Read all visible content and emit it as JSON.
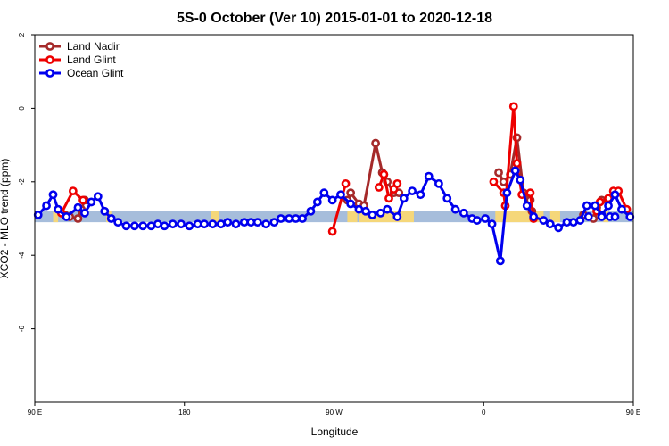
{
  "chart_data": {
    "type": "line",
    "title": "5S-0 October (Ver 10)   2015-01-01 to 2020-12-18",
    "xlabel": "Longitude",
    "ylabel": "XCO2 - MLO trend (ppm)",
    "xlim": [
      90,
      450
    ],
    "ylim": [
      -8,
      2
    ],
    "x_ticks": [
      {
        "value": 90,
        "label": "90 E"
      },
      {
        "value": 180,
        "label": "180"
      },
      {
        "value": 270,
        "label": "90 W"
      },
      {
        "value": 360,
        "label": "0"
      },
      {
        "value": 450,
        "label": "90 E"
      }
    ],
    "y_ticks": [
      {
        "value": 2,
        "label": "2"
      },
      {
        "value": 0,
        "label": "0"
      },
      {
        "value": -2,
        "label": "-2"
      },
      {
        "value": -4,
        "label": "-4"
      },
      {
        "value": -6,
        "label": "-6"
      }
    ],
    "grid": false,
    "legend_position": "top-left",
    "surface_band": {
      "y_range": [
        -3.1,
        -2.8
      ],
      "ocean_color": "#a6bddb",
      "land_color": "#f5d77a",
      "land_ranges": [
        [
          101,
          104
        ],
        [
          133,
          136
        ],
        [
          196,
          201
        ],
        [
          278,
          284
        ],
        [
          285,
          318
        ],
        [
          367,
          396
        ],
        [
          400,
          406
        ],
        [
          432,
          435
        ]
      ]
    },
    "series": [
      {
        "name": "Land Nadir",
        "color": "#a52a2a",
        "points": [
          [
            108,
            -2.9
          ],
          [
            111,
            -2.95
          ],
          [
            116,
            -3.0
          ],
          [
            118,
            -2.75
          ],
          [
            120,
            -2.5
          ],
          [
            278,
            -2.5
          ],
          [
            280,
            -2.3
          ],
          [
            285,
            -2.6
          ],
          [
            288,
            -2.65
          ],
          [
            295,
            -0.95
          ],
          [
            299,
            -1.75
          ],
          [
            302,
            -2.0
          ],
          [
            306,
            -2.3
          ],
          [
            309,
            -2.3
          ],
          [
            369,
            -1.75
          ],
          [
            372,
            -2.0
          ],
          [
            376,
            -1.8
          ],
          [
            380,
            -0.8
          ],
          [
            384,
            -2.3
          ],
          [
            388,
            -2.5
          ],
          [
            389,
            -2.8
          ],
          [
            420,
            -2.9
          ],
          [
            426,
            -3.0
          ],
          [
            428,
            -2.7
          ],
          [
            431,
            -2.5
          ]
        ]
      },
      {
        "name": "Land Glint",
        "color": "#ee0000",
        "points": [
          [
            106,
            -2.85
          ],
          [
            113,
            -2.25
          ],
          [
            119,
            -2.5
          ],
          [
            269,
            -3.35
          ],
          [
            277,
            -2.05
          ],
          [
            297,
            -2.15
          ],
          [
            300,
            -1.8
          ],
          [
            303,
            -2.45
          ],
          [
            306,
            -2.2
          ],
          [
            308,
            -2.05
          ],
          [
            366,
            -2.0
          ],
          [
            372,
            -2.3
          ],
          [
            373,
            -2.65
          ],
          [
            378,
            0.05
          ],
          [
            380,
            -1.5
          ],
          [
            383,
            -2.35
          ],
          [
            388,
            -2.3
          ],
          [
            390,
            -3.0
          ],
          [
            428,
            -2.8
          ],
          [
            430,
            -2.55
          ],
          [
            435,
            -2.45
          ],
          [
            438,
            -2.25
          ],
          [
            441,
            -2.25
          ],
          [
            446,
            -2.75
          ]
        ]
      },
      {
        "name": "Ocean Glint",
        "color": "#0000ee",
        "points": [
          [
            92,
            -2.9
          ],
          [
            97,
            -2.65
          ],
          [
            101,
            -2.35
          ],
          [
            104,
            -2.75
          ],
          [
            109,
            -2.95
          ],
          [
            116,
            -2.7
          ],
          [
            120,
            -2.85
          ],
          [
            124,
            -2.55
          ],
          [
            128,
            -2.4
          ],
          [
            132,
            -2.8
          ],
          [
            136,
            -3.0
          ],
          [
            140,
            -3.1
          ],
          [
            145,
            -3.2
          ],
          [
            150,
            -3.2
          ],
          [
            155,
            -3.2
          ],
          [
            160,
            -3.2
          ],
          [
            164,
            -3.15
          ],
          [
            168,
            -3.2
          ],
          [
            173,
            -3.15
          ],
          [
            178,
            -3.15
          ],
          [
            183,
            -3.2
          ],
          [
            188,
            -3.15
          ],
          [
            192,
            -3.15
          ],
          [
            197,
            -3.15
          ],
          [
            202,
            -3.15
          ],
          [
            206,
            -3.1
          ],
          [
            211,
            -3.15
          ],
          [
            216,
            -3.1
          ],
          [
            220,
            -3.1
          ],
          [
            224,
            -3.1
          ],
          [
            229,
            -3.15
          ],
          [
            234,
            -3.1
          ],
          [
            238,
            -3.0
          ],
          [
            243,
            -3.0
          ],
          [
            247,
            -3.0
          ],
          [
            251,
            -3.0
          ],
          [
            256,
            -2.8
          ],
          [
            260,
            -2.55
          ],
          [
            264,
            -2.3
          ],
          [
            269,
            -2.5
          ],
          [
            274,
            -2.35
          ],
          [
            280,
            -2.6
          ],
          [
            285,
            -2.75
          ],
          [
            289,
            -2.8
          ],
          [
            293,
            -2.9
          ],
          [
            298,
            -2.85
          ],
          [
            302,
            -2.75
          ],
          [
            308,
            -2.95
          ],
          [
            312,
            -2.45
          ],
          [
            317,
            -2.25
          ],
          [
            322,
            -2.35
          ],
          [
            327,
            -1.85
          ],
          [
            333,
            -2.05
          ],
          [
            338,
            -2.45
          ],
          [
            343,
            -2.75
          ],
          [
            348,
            -2.85
          ],
          [
            353,
            -3.0
          ],
          [
            356,
            -3.05
          ],
          [
            361,
            -3.0
          ],
          [
            365,
            -3.15
          ],
          [
            370,
            -4.15
          ],
          [
            374,
            -2.3
          ],
          [
            379,
            -1.7
          ],
          [
            382,
            -1.95
          ],
          [
            386,
            -2.65
          ],
          [
            390,
            -2.95
          ],
          [
            396,
            -3.05
          ],
          [
            400,
            -3.15
          ],
          [
            405,
            -3.25
          ],
          [
            410,
            -3.1
          ],
          [
            414,
            -3.1
          ],
          [
            418,
            -3.05
          ],
          [
            422,
            -2.65
          ],
          [
            427,
            -2.65
          ],
          [
            431,
            -2.9
          ],
          [
            435,
            -2.65
          ],
          [
            439,
            -2.35
          ],
          [
            443,
            -2.75
          ],
          [
            448,
            -2.95
          ],
          [
            436,
            -2.95
          ],
          [
            431,
            -2.95
          ],
          [
            439,
            -2.95
          ],
          [
            423,
            -2.95
          ]
        ]
      }
    ]
  }
}
